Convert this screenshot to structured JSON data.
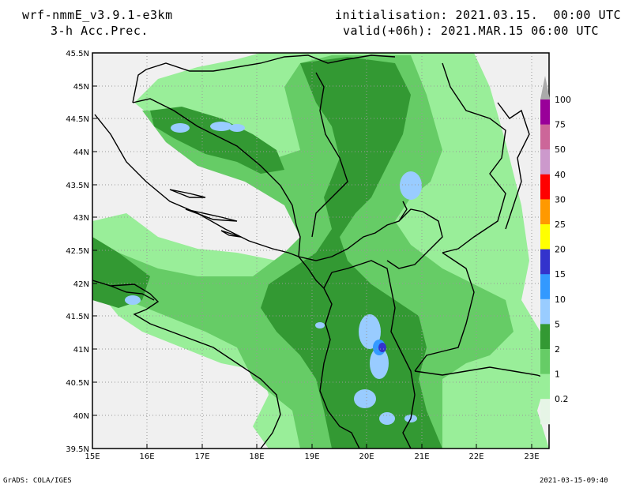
{
  "header": {
    "model": "wrf-nmmE_v3.9.1-e3km",
    "field": "3-h Acc.Prec.",
    "init": "initialisation: 2021.03.15.  00:00 UTC",
    "valid": "valid(+06h): 2021.MAR.15 06:00 UTC"
  },
  "axes": {
    "lat_labels": [
      "45.5N",
      "45N",
      "44.5N",
      "44N",
      "43.5N",
      "43N",
      "42.5N",
      "42N",
      "41.5N",
      "41N",
      "40.5N",
      "40N",
      "39.5N"
    ],
    "lon_labels": [
      "15E",
      "16E",
      "17E",
      "18E",
      "19E",
      "20E",
      "21E",
      "22E",
      "23E"
    ]
  },
  "legend": {
    "levels": [
      "100",
      "75",
      "50",
      "40",
      "30",
      "25",
      "20",
      "15",
      "10",
      "5",
      "2",
      "1",
      "0.2"
    ],
    "colors": [
      "#990099",
      "#cc6699",
      "#cc99cc",
      "#ff0000",
      "#ff9900",
      "#ffff00",
      "#3333cc",
      "#3399ff",
      "#99ccff",
      "#339933",
      "#66cc66",
      "#99ee99",
      "#e6f5e6"
    ]
  },
  "footer": {
    "left": "GrADS: COLA/IGES",
    "right": "2021-03-15-09:40"
  }
}
